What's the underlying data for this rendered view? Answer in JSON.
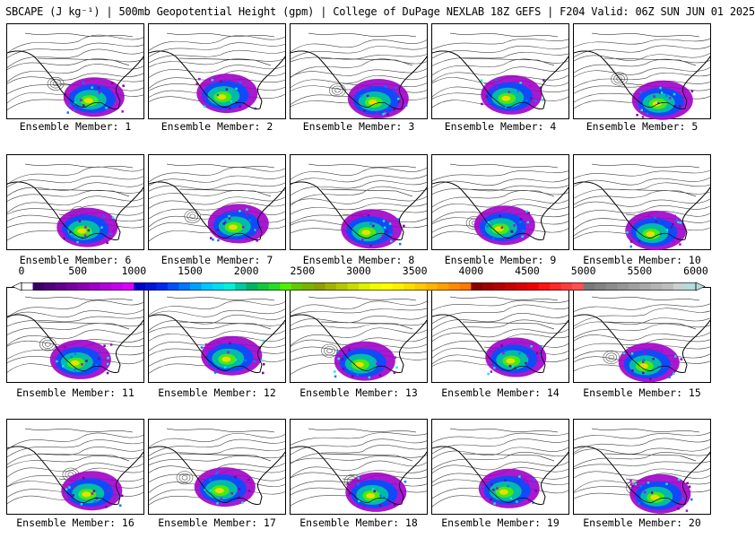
{
  "title": "SBCAPE (J kg⁻¹) | 500mb Geopotential Height (gpm) | College of DuPage NEXLAB 18Z GEFS | F204 Valid: 06Z SUN JUN 01 2025",
  "ensemble_label_prefix": "Ensemble Member: ",
  "members": [
    {
      "label": "Ensemble Member: 1"
    },
    {
      "label": "Ensemble Member: 2"
    },
    {
      "label": "Ensemble Member: 3"
    },
    {
      "label": "Ensemble Member: 4"
    },
    {
      "label": "Ensemble Member: 5"
    },
    {
      "label": "Ensemble Member: 6"
    },
    {
      "label": "Ensemble Member: 7"
    },
    {
      "label": "Ensemble Member: 8"
    },
    {
      "label": "Ensemble Member: 9"
    },
    {
      "label": "Ensemble Member: 10"
    },
    {
      "label": "Ensemble Member: 11"
    },
    {
      "label": "Ensemble Member: 12"
    },
    {
      "label": "Ensemble Member: 13"
    },
    {
      "label": "Ensemble Member: 14"
    },
    {
      "label": "Ensemble Member: 15"
    },
    {
      "label": "Ensemble Member: 16"
    },
    {
      "label": "Ensemble Member: 17"
    },
    {
      "label": "Ensemble Member: 18"
    },
    {
      "label": "Ensemble Member: 19"
    },
    {
      "label": "Ensemble Member: 20"
    }
  ],
  "colorbar": {
    "min": 0,
    "max": 6000,
    "step": 100,
    "tick_labels": [
      "0",
      "500",
      "1000",
      "1500",
      "2000",
      "2500",
      "3000",
      "3500",
      "4000",
      "4500",
      "5000",
      "5500",
      "6000"
    ],
    "colors": [
      "#ffffff",
      "#3c0064",
      "#500078",
      "#64008c",
      "#7800a0",
      "#8c00b4",
      "#a000c8",
      "#b400dc",
      "#c800f0",
      "#dc00ff",
      "#0000c8",
      "#0014dc",
      "#0028f0",
      "#0050ff",
      "#0078ff",
      "#00a0ff",
      "#00c8ff",
      "#00dcf0",
      "#00f0dc",
      "#00c8a0",
      "#00b464",
      "#14c83c",
      "#28dc28",
      "#50f000",
      "#64c800",
      "#78b400",
      "#8ca000",
      "#a0b400",
      "#b4c800",
      "#c8dc00",
      "#dcf000",
      "#f0ff00",
      "#ffff00",
      "#fff000",
      "#ffdc00",
      "#ffc800",
      "#ffb400",
      "#ffa000",
      "#ff8c00",
      "#ff7800",
      "#8c0000",
      "#a00000",
      "#b40000",
      "#c80000",
      "#dc0000",
      "#f00000",
      "#ff1414",
      "#ff2828",
      "#ff3c3c",
      "#ff5050",
      "#787878",
      "#828282",
      "#8c8c8c",
      "#969696",
      "#a0a0a0",
      "#aaaaaa",
      "#b4b4b4",
      "#bebebe",
      "#c8d2d2",
      "#b4dcdc"
    ]
  }
}
